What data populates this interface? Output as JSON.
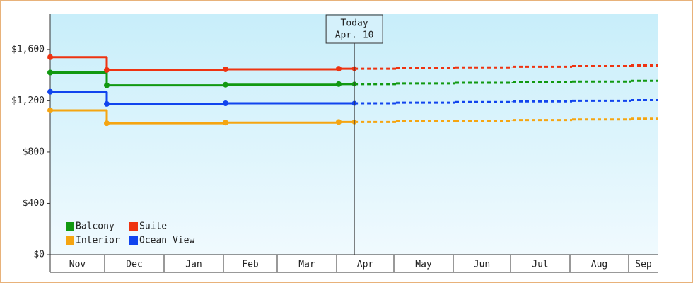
{
  "chart_data": {
    "type": "step-line",
    "categories": [
      "Nov",
      "Dec",
      "Jan",
      "Feb",
      "Mar",
      "Apr",
      "May",
      "Jun",
      "Jul",
      "Aug",
      "Sep"
    ],
    "series": [
      {
        "name": "Balcony",
        "color": "#119911",
        "values": [
          1420,
          1320,
          1320,
          1325,
          1325,
          1330,
          1335,
          1340,
          1345,
          1350,
          1355
        ]
      },
      {
        "name": "Suite",
        "color": "#ee3311",
        "values": [
          1540,
          1440,
          1440,
          1445,
          1445,
          1450,
          1455,
          1460,
          1465,
          1470,
          1475
        ]
      },
      {
        "name": "Interior",
        "color": "#f5a511",
        "values": [
          1125,
          1025,
          1025,
          1030,
          1030,
          1035,
          1040,
          1045,
          1050,
          1055,
          1060
        ]
      },
      {
        "name": "Ocean View",
        "color": "#1144ee",
        "values": [
          1270,
          1175,
          1175,
          1180,
          1180,
          1180,
          1185,
          1190,
          1195,
          1200,
          1205
        ]
      }
    ],
    "ylim": [
      0,
      1875
    ],
    "yticks": [
      {
        "value": 0,
        "label": "$0"
      },
      {
        "value": 400,
        "label": "$400"
      },
      {
        "value": 800,
        "label": "$800"
      },
      {
        "value": 1200,
        "label": "$1,200"
      },
      {
        "value": 1600,
        "label": "$1,600"
      }
    ],
    "annotation": {
      "label": "Today",
      "date": "Apr. 10",
      "category": "Apr"
    },
    "legend": "lower left"
  }
}
